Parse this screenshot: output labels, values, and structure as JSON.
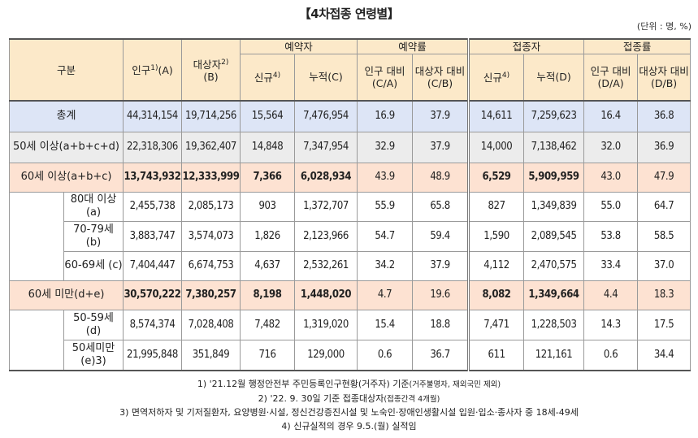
{
  "title": "【4차접종 연령별】",
  "unit": "(단위 : 명, %)",
  "header": {
    "category": "구분",
    "population": "인구",
    "population_sup": "1)",
    "population_suffix": "(A)",
    "target": "대상자",
    "target_sup": "2)",
    "target_suffix": "(B)",
    "reservation": "예약자",
    "reservation_rate": "예약률",
    "vaccinated": "접종자",
    "vaccination_rate": "접종률",
    "new": "신규",
    "new_sup": "4)",
    "cum_c": "누적(C)",
    "cum_d": "누적(D)",
    "pop_ratio_c": "인구 대비 (C/A)",
    "target_ratio_c": "대상자 대비 (C/B)",
    "pop_ratio_d": "인구 대비 (D/A)",
    "target_ratio_d": "대상자 대비 (D/B)"
  },
  "rows": [
    {
      "label": "총계",
      "pop": "44,314,154",
      "target": "19,714,256",
      "res_new": "15,564",
      "res_cum": "7,476,954",
      "res_pop": "16.9",
      "res_tgt": "37.9",
      "vac_new": "14,611",
      "vac_cum": "7,259,623",
      "vac_pop": "16.4",
      "vac_tgt": "36.8"
    },
    {
      "label": "50세 이상(a+b+c+d)",
      "pop": "22,318,306",
      "target": "19,362,407",
      "res_new": "14,848",
      "res_cum": "7,347,954",
      "res_pop": "32.9",
      "res_tgt": "37.9",
      "vac_new": "14,000",
      "vac_cum": "7,138,462",
      "vac_pop": "32.0",
      "vac_tgt": "36.9"
    },
    {
      "label": "60세 이상(a+b+c)",
      "pop": "13,743,932",
      "target": "12,333,999",
      "res_new": "7,366",
      "res_cum": "6,028,934",
      "res_pop": "43.9",
      "res_tgt": "48.9",
      "vac_new": "6,529",
      "vac_cum": "5,909,959",
      "vac_pop": "43.0",
      "vac_tgt": "47.9"
    },
    {
      "label": "80대 이상 (a)",
      "pop": "2,455,738",
      "target": "2,085,173",
      "res_new": "903",
      "res_cum": "1,372,707",
      "res_pop": "55.9",
      "res_tgt": "65.8",
      "vac_new": "827",
      "vac_cum": "1,349,839",
      "vac_pop": "55.0",
      "vac_tgt": "64.7"
    },
    {
      "label": "70-79세 (b)",
      "pop": "3,883,747",
      "target": "3,574,073",
      "res_new": "1,826",
      "res_cum": "2,123,966",
      "res_pop": "54.7",
      "res_tgt": "59.4",
      "vac_new": "1,590",
      "vac_cum": "2,089,545",
      "vac_pop": "53.8",
      "vac_tgt": "58.5"
    },
    {
      "label": "60-69세 (c)",
      "pop": "7,404,447",
      "target": "6,674,753",
      "res_new": "4,637",
      "res_cum": "2,532,261",
      "res_pop": "34.2",
      "res_tgt": "37.9",
      "vac_new": "4,112",
      "vac_cum": "2,470,575",
      "vac_pop": "33.4",
      "vac_tgt": "37.0"
    },
    {
      "label": "60세 미만(d+e)",
      "pop": "30,570,222",
      "target": "7,380,257",
      "res_new": "8,198",
      "res_cum": "1,448,020",
      "res_pop": "4.7",
      "res_tgt": "19.6",
      "vac_new": "8,082",
      "vac_cum": "1,349,664",
      "vac_pop": "4.4",
      "vac_tgt": "18.3"
    },
    {
      "label": "50-59세 (d)",
      "pop": "8,574,374",
      "target": "7,028,408",
      "res_new": "7,482",
      "res_cum": "1,319,020",
      "res_pop": "15.4",
      "res_tgt": "18.8",
      "vac_new": "7,471",
      "vac_cum": "1,228,503",
      "vac_pop": "14.3",
      "vac_tgt": "17.5"
    },
    {
      "label": "50세미만 (e)3)",
      "pop": "21,995,848",
      "target": "351,849",
      "res_new": "716",
      "res_cum": "129,000",
      "res_pop": "0.6",
      "res_tgt": "36.7",
      "vac_new": "611",
      "vac_cum": "121,161",
      "vac_pop": "0.6",
      "vac_tgt": "34.4"
    }
  ],
  "notes": {
    "n1": "1) '21.12월 행정안전부 주민등록인구현황(거주자) 기준",
    "n1_small": "(거주불명자, 재외국민 제외)",
    "n2": "2) '22. 9. 30일 기준 접종대상자",
    "n2_small": "(접종간격 4개월)",
    "n3": "3) 면역저하자 및 기저질환자, 요양병원·시설, 정신건강증진시설 및 노숙인·장애인생활시설 입원·입소·종사자 중 18세-49세",
    "n4": "4) 신규실적의 경우 9.5.(월) 실적임"
  }
}
